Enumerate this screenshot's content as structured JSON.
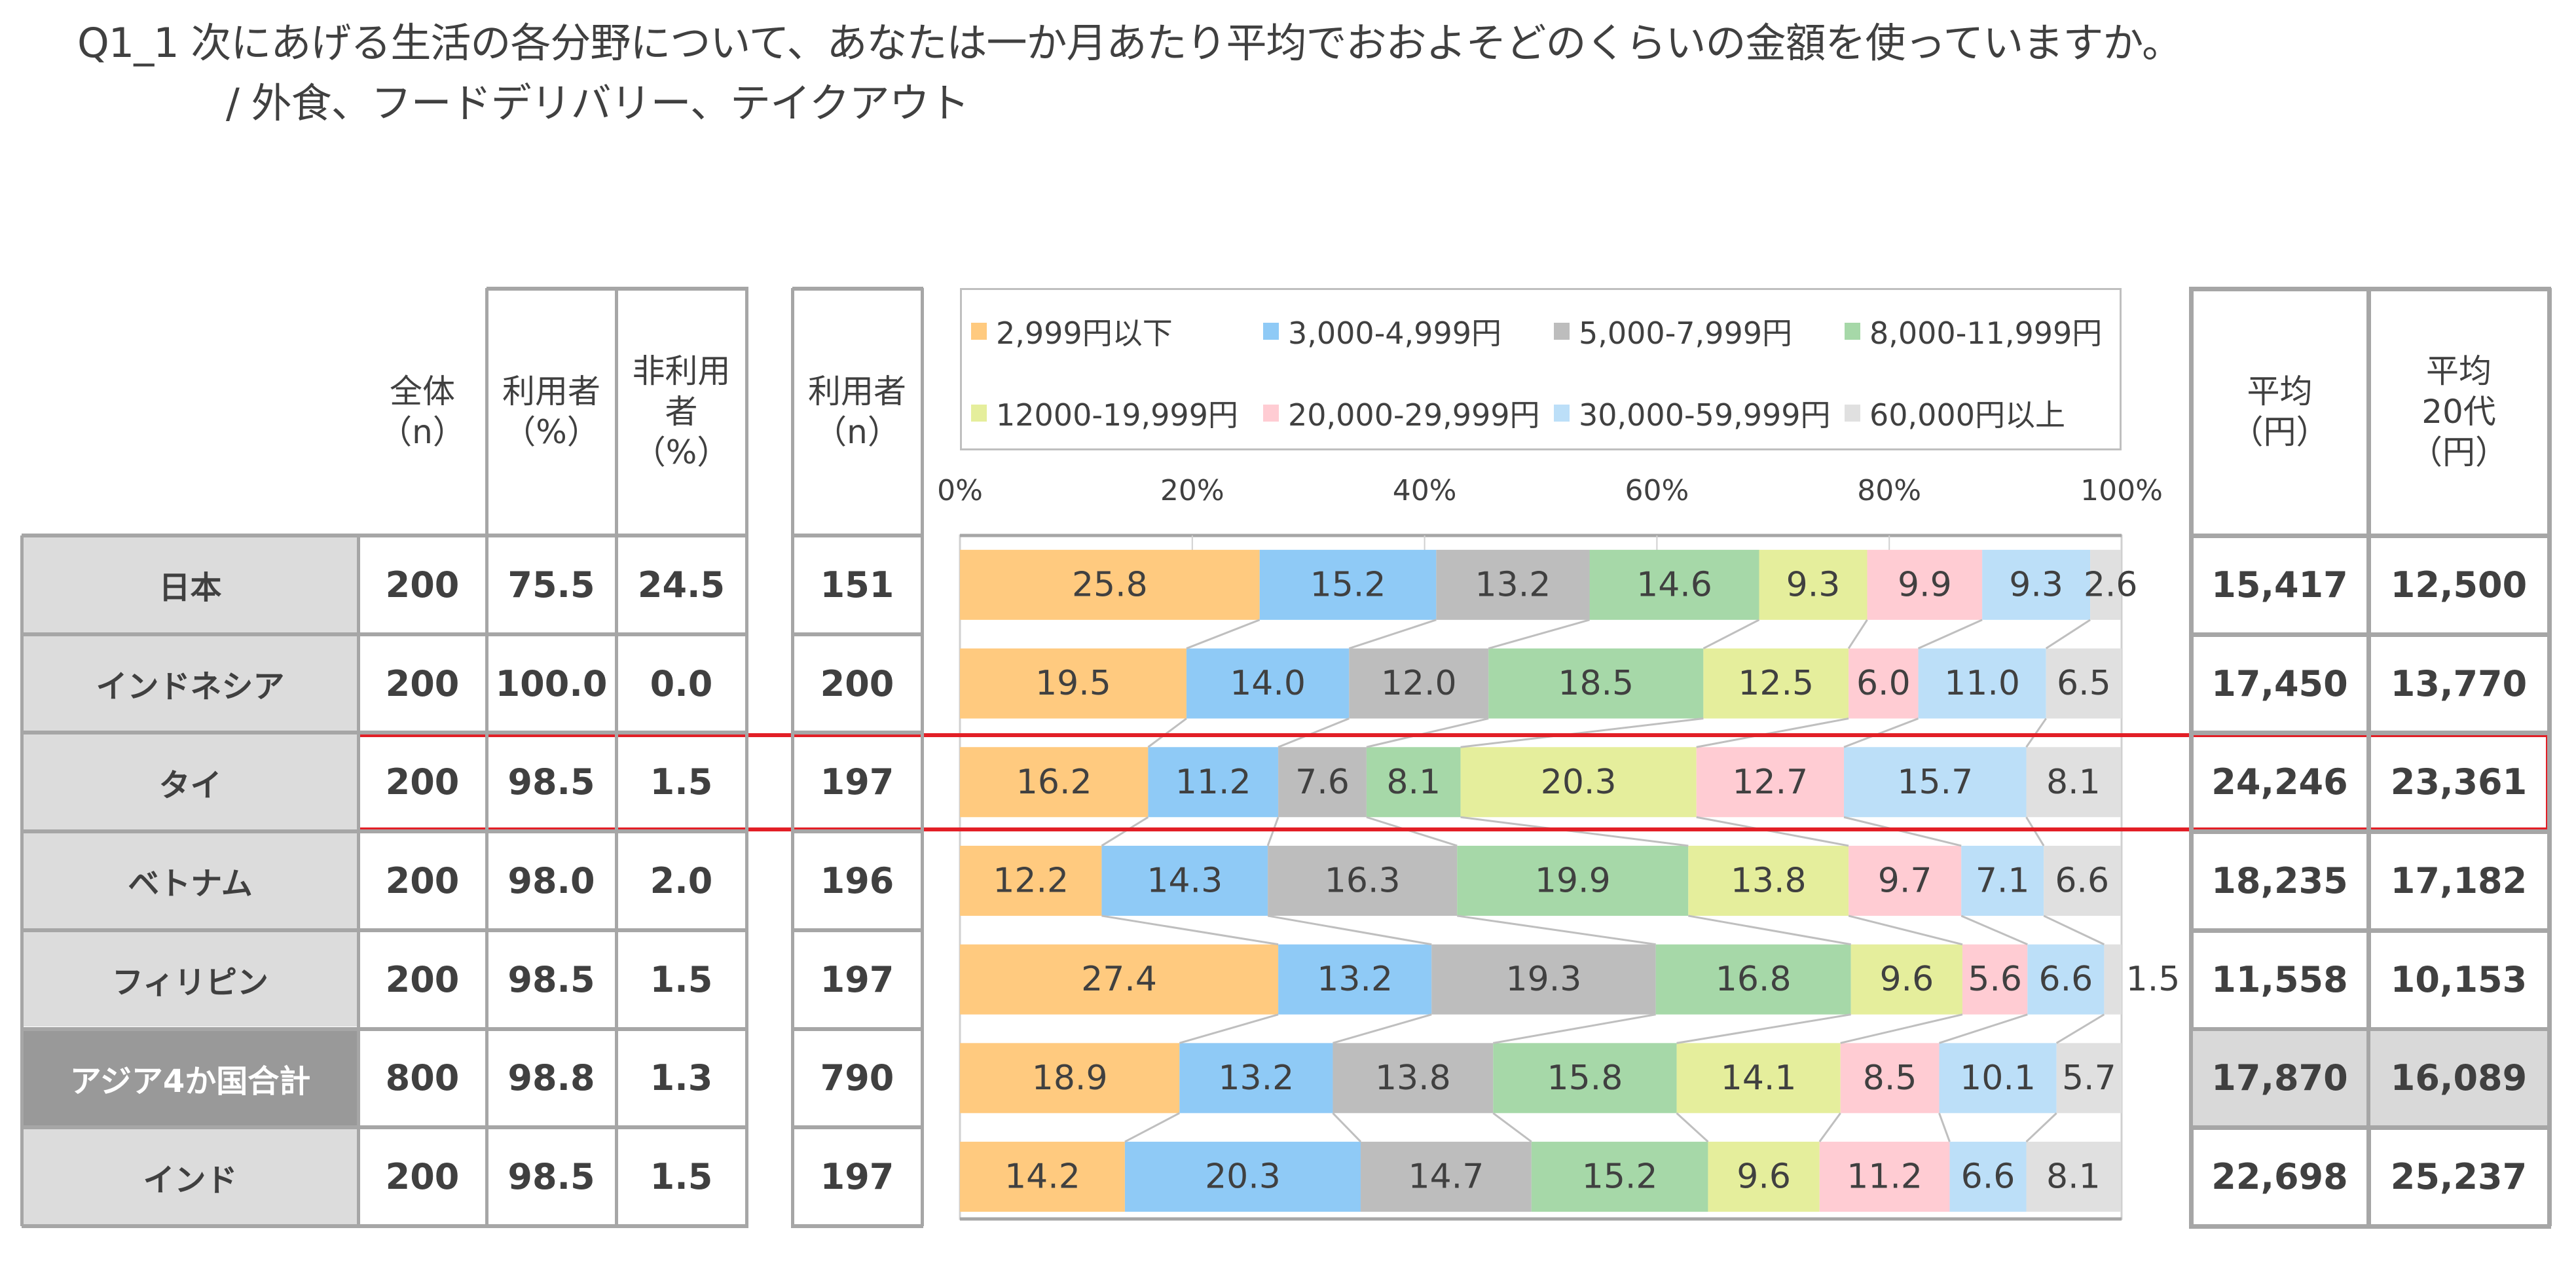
{
  "title": {
    "line1": "Q1_1 次にあげる生活の各分野について、あなたは一か月あたり平均でおおよそどのくらいの金額を使っていますか。",
    "line2": "/ 外食、フードデリバリー、テイクアウト"
  },
  "headers": {
    "total_n": "全体\n（n）",
    "users_pct": "利用者\n（%）",
    "nonusers_pct": "非利用\n者\n（%）",
    "users_n": "利用者\n（n）",
    "avg": "平均\n（円）",
    "avg_20s": "平均\n20代\n（円）"
  },
  "rows": [
    {
      "label": "日本",
      "total_n": "200",
      "users_pct": "75.5",
      "nonusers_pct": "24.5",
      "users_n": "151",
      "avg": "15,417",
      "avg_20s": "12,500",
      "is_total": false,
      "highlighted": false
    },
    {
      "label": "インドネシア",
      "total_n": "200",
      "users_pct": "100.0",
      "nonusers_pct": "0.0",
      "users_n": "200",
      "avg": "17,450",
      "avg_20s": "13,770",
      "is_total": false,
      "highlighted": false
    },
    {
      "label": "タイ",
      "total_n": "200",
      "users_pct": "98.5",
      "nonusers_pct": "1.5",
      "users_n": "197",
      "avg": "24,246",
      "avg_20s": "23,361",
      "is_total": false,
      "highlighted": true
    },
    {
      "label": "ベトナム",
      "total_n": "200",
      "users_pct": "98.0",
      "nonusers_pct": "2.0",
      "users_n": "196",
      "avg": "18,235",
      "avg_20s": "17,182",
      "is_total": false,
      "highlighted": false
    },
    {
      "label": "フィリピン",
      "total_n": "200",
      "users_pct": "98.5",
      "nonusers_pct": "1.5",
      "users_n": "197",
      "avg": "11,558",
      "avg_20s": "10,153",
      "is_total": false,
      "highlighted": false
    },
    {
      "label": "アジア4か国合計",
      "total_n": "800",
      "users_pct": "98.8",
      "nonusers_pct": "1.3",
      "users_n": "790",
      "avg": "17,870",
      "avg_20s": "16,089",
      "is_total": true,
      "highlighted": false
    },
    {
      "label": "インド",
      "total_n": "200",
      "users_pct": "98.5",
      "nonusers_pct": "1.5",
      "users_n": "197",
      "avg": "22,698",
      "avg_20s": "25,237",
      "is_total": false,
      "highlighted": false
    }
  ],
  "chart_data": {
    "type": "bar",
    "orientation": "horizontal-stacked-100",
    "title": "",
    "xlabel": "",
    "ylabel": "",
    "xlim": [
      0,
      100
    ],
    "x_ticks": [
      "0%",
      "20%",
      "40%",
      "60%",
      "80%",
      "100%"
    ],
    "grid": true,
    "legend_position": "top",
    "series_lines": true,
    "categories": [
      "日本",
      "インドネシア",
      "タイ",
      "ベトナム",
      "フィリピン",
      "アジア4か国合計",
      "インド"
    ],
    "series": [
      {
        "name": "2,999円以下",
        "color": "#FFCA7F",
        "values": [
          25.8,
          19.5,
          16.2,
          12.2,
          27.4,
          18.9,
          14.2
        ]
      },
      {
        "name": "3,000-4,999円",
        "color": "#8FCAF6",
        "values": [
          15.2,
          14.0,
          11.2,
          14.3,
          13.2,
          13.2,
          20.3
        ]
      },
      {
        "name": "5,000-7,999円",
        "color": "#BDBDBD",
        "values": [
          13.2,
          12.0,
          7.6,
          16.3,
          19.3,
          13.8,
          14.7
        ]
      },
      {
        "name": "8,000-11,999円",
        "color": "#A6D8A8",
        "values": [
          14.6,
          18.5,
          8.1,
          19.9,
          16.8,
          15.8,
          15.2
        ]
      },
      {
        "name": "12000-19,999円",
        "color": "#E5EE9C",
        "values": [
          9.3,
          12.5,
          20.3,
          13.8,
          9.6,
          14.1,
          9.6
        ]
      },
      {
        "name": "20,000-29,999円",
        "color": "#FFCCD3",
        "values": [
          9.9,
          6.0,
          12.7,
          9.7,
          5.6,
          8.5,
          11.2
        ]
      },
      {
        "name": "30,000-59,999円",
        "color": "#BCDFF8",
        "values": [
          9.3,
          11.0,
          15.7,
          7.1,
          6.6,
          10.1,
          6.6
        ]
      },
      {
        "name": "60,000円以上",
        "color": "#E0E0E0",
        "values": [
          2.6,
          6.5,
          8.1,
          6.6,
          1.5,
          5.7,
          8.1
        ]
      }
    ]
  }
}
